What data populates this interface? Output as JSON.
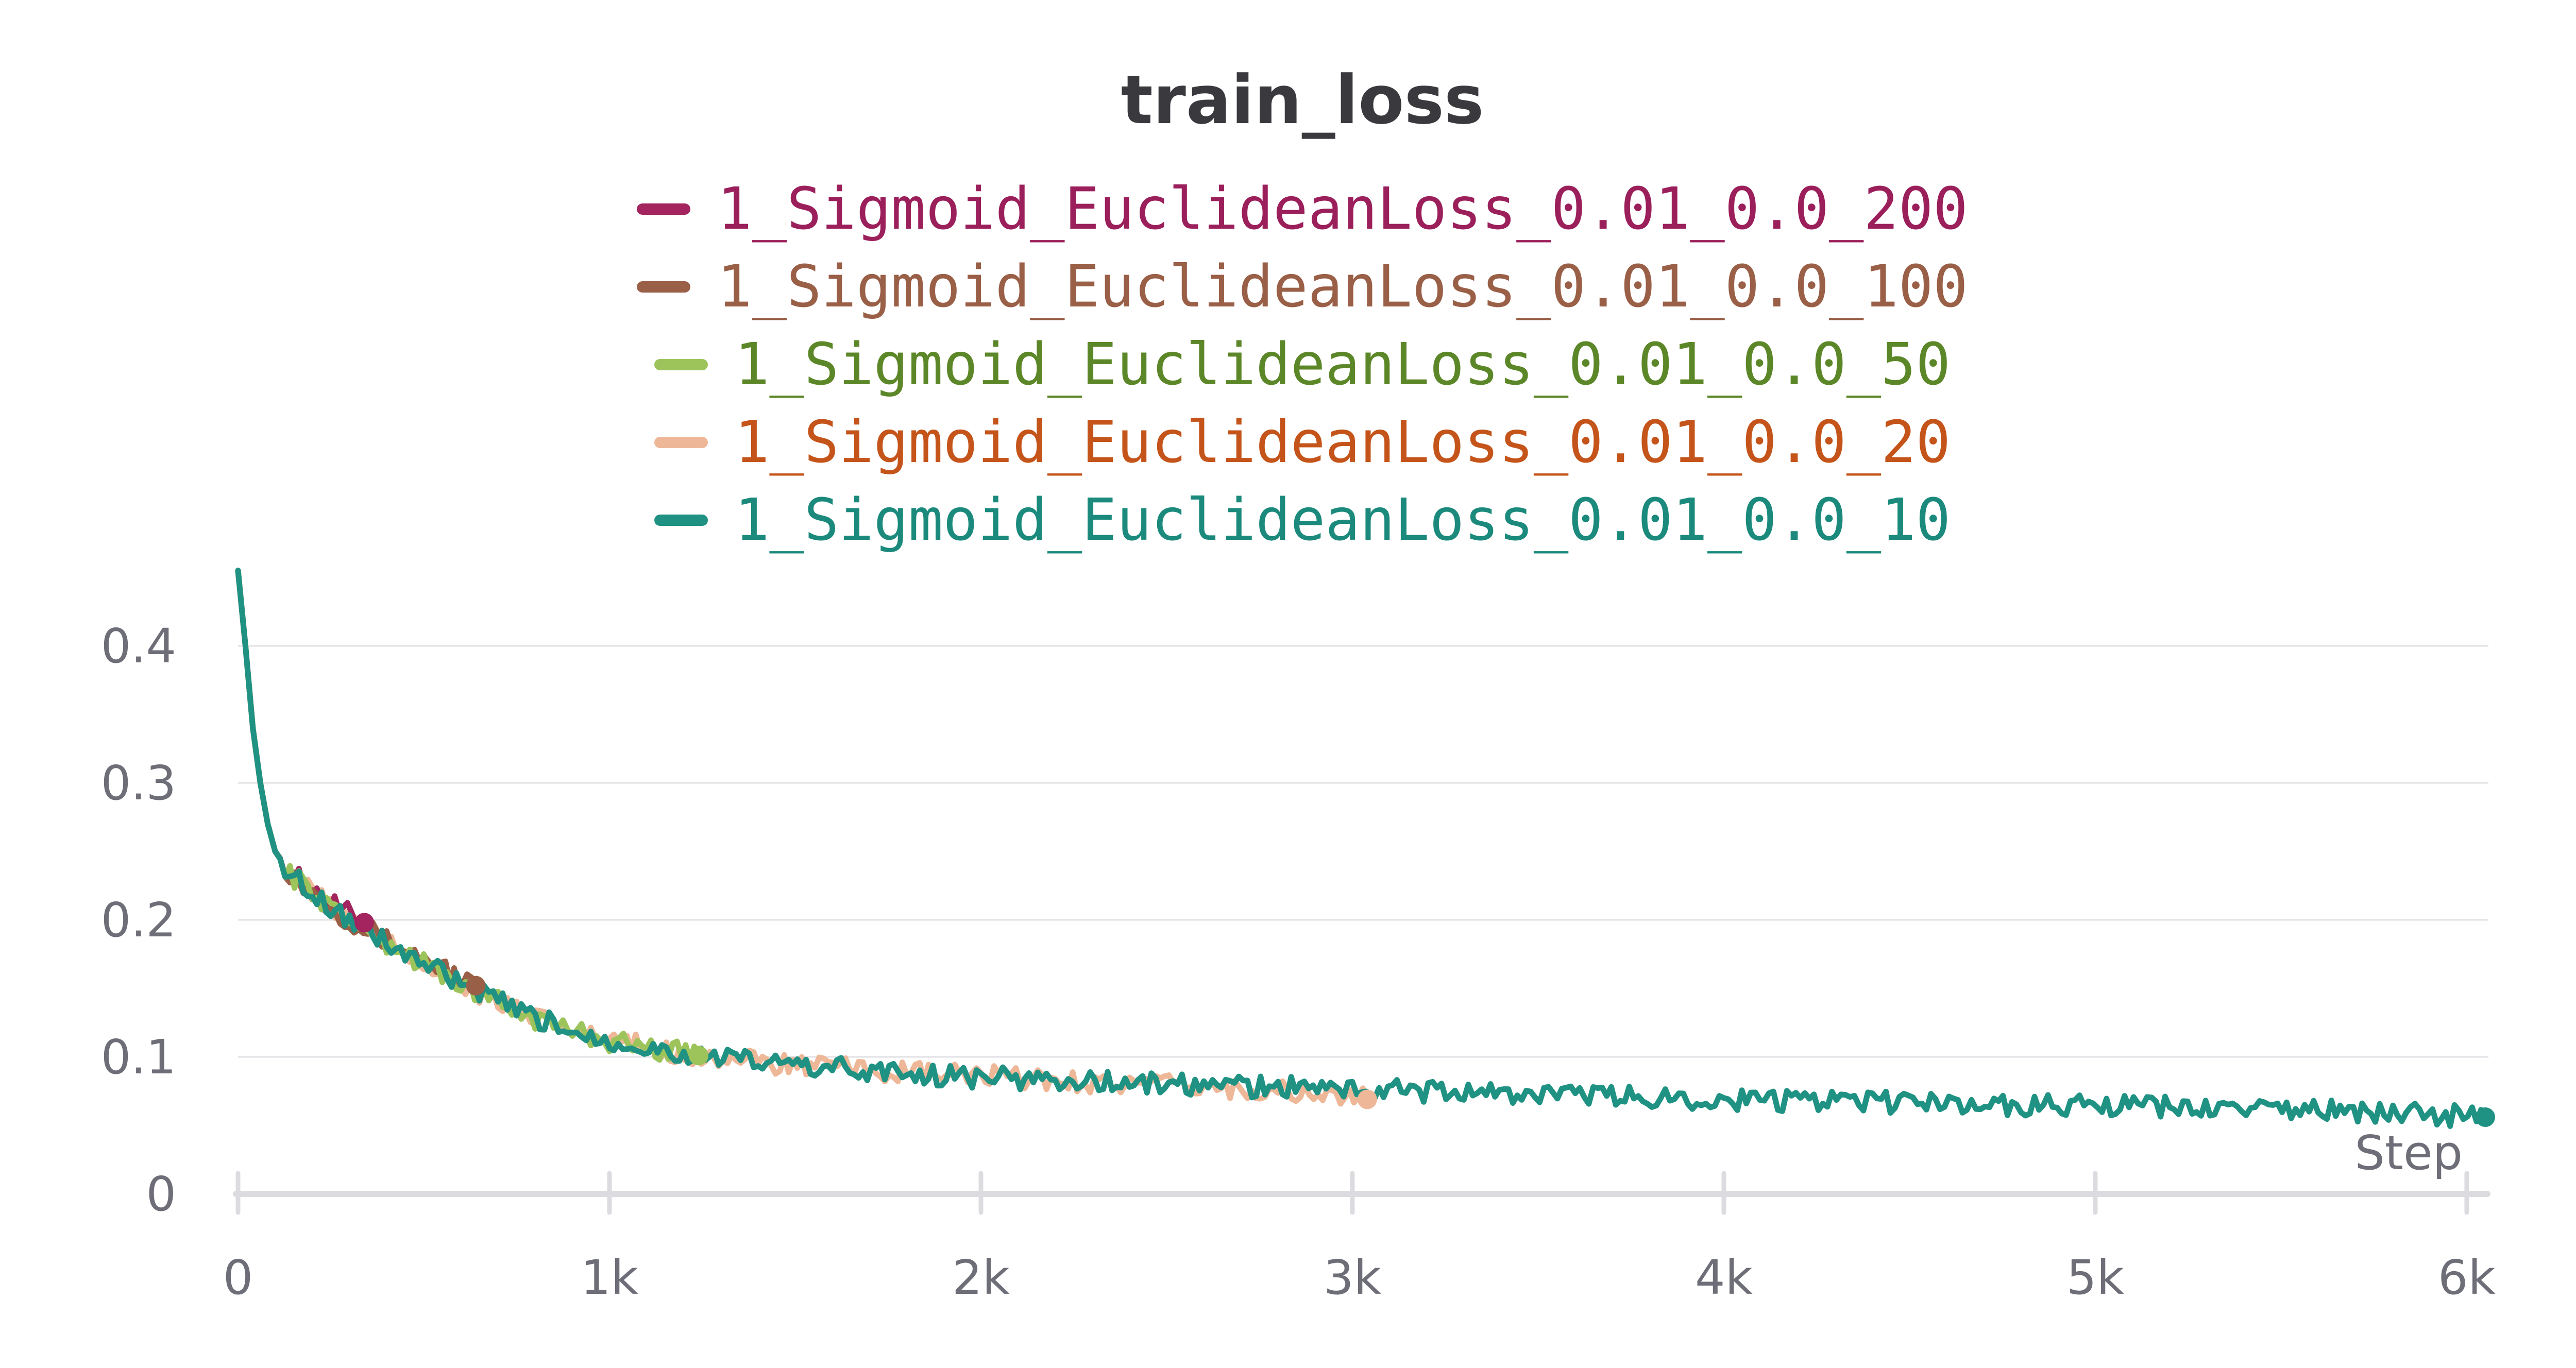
{
  "chart_data": {
    "type": "line",
    "title": "train_loss",
    "xlabel": "Step",
    "ylabel": "",
    "xlim": [
      0,
      6050
    ],
    "ylim": [
      0,
      0.45
    ],
    "x_ticks": [
      {
        "value": 0,
        "label": "0"
      },
      {
        "value": 1000,
        "label": "1k"
      },
      {
        "value": 2000,
        "label": "2k"
      },
      {
        "value": 3000,
        "label": "3k"
      },
      {
        "value": 4000,
        "label": "4k"
      },
      {
        "value": 5000,
        "label": "5k"
      },
      {
        "value": 6000,
        "label": "6k"
      }
    ],
    "y_ticks": [
      {
        "value": 0,
        "label": "0"
      },
      {
        "value": 0.1,
        "label": "0.1"
      },
      {
        "value": 0.2,
        "label": "0.2"
      },
      {
        "value": 0.3,
        "label": "0.3"
      },
      {
        "value": 0.4,
        "label": "0.4"
      }
    ],
    "grid": true,
    "legend_position": "top-center",
    "series": [
      {
        "name": "1_Sigmoid_EuclideanLoss_0.01_0.0_200",
        "color": "#a3245f",
        "text_color": "#9b1f5b",
        "x": [
          0,
          20,
          40,
          60,
          80,
          100,
          140,
          200,
          260,
          340
        ],
        "y": [
          0.455,
          0.4,
          0.34,
          0.3,
          0.27,
          0.25,
          0.235,
          0.222,
          0.21,
          0.198
        ]
      },
      {
        "name": "1_Sigmoid_EuclideanLoss_0.01_0.0_100",
        "color": "#9a5f47",
        "text_color": "#9a5f47",
        "x": [
          0,
          20,
          40,
          60,
          80,
          100,
          140,
          200,
          300,
          400,
          500,
          640
        ],
        "y": [
          0.455,
          0.4,
          0.34,
          0.3,
          0.27,
          0.25,
          0.234,
          0.22,
          0.2,
          0.185,
          0.172,
          0.152
        ]
      },
      {
        "name": "1_Sigmoid_EuclideanLoss_0.01_0.0_50",
        "color": "#9cc45a",
        "text_color": "#5c8728",
        "x": [
          0,
          20,
          40,
          60,
          80,
          100,
          140,
          200,
          300,
          400,
          500,
          600,
          700,
          800,
          900,
          1000,
          1100,
          1240
        ],
        "y": [
          0.455,
          0.4,
          0.34,
          0.3,
          0.27,
          0.25,
          0.234,
          0.22,
          0.2,
          0.183,
          0.168,
          0.153,
          0.14,
          0.128,
          0.119,
          0.112,
          0.107,
          0.101
        ]
      },
      {
        "name": "1_Sigmoid_EuclideanLoss_0.01_0.0_20",
        "color": "#eeb898",
        "text_color": "#c4541a",
        "x": [
          0,
          20,
          40,
          60,
          80,
          100,
          140,
          200,
          300,
          400,
          500,
          600,
          700,
          800,
          900,
          1000,
          1200,
          1400,
          1600,
          1800,
          2000,
          2200,
          2400,
          2600,
          2800,
          3040
        ],
        "y": [
          0.455,
          0.4,
          0.34,
          0.3,
          0.27,
          0.25,
          0.234,
          0.22,
          0.2,
          0.183,
          0.168,
          0.153,
          0.14,
          0.128,
          0.119,
          0.112,
          0.102,
          0.096,
          0.092,
          0.088,
          0.086,
          0.083,
          0.08,
          0.078,
          0.075,
          0.069
        ]
      },
      {
        "name": "1_Sigmoid_EuclideanLoss_0.01_0.0_10",
        "color": "#1f9283",
        "text_color": "#1b8a7c",
        "x": [
          0,
          20,
          40,
          60,
          80,
          100,
          140,
          200,
          300,
          400,
          500,
          600,
          700,
          800,
          900,
          1000,
          1200,
          1400,
          1600,
          1800,
          2000,
          2200,
          2400,
          2600,
          2800,
          3000,
          3300,
          3600,
          4000,
          4400,
          4800,
          5200,
          5600,
          6050
        ],
        "y": [
          0.455,
          0.4,
          0.34,
          0.3,
          0.27,
          0.25,
          0.234,
          0.22,
          0.2,
          0.183,
          0.168,
          0.153,
          0.14,
          0.128,
          0.119,
          0.112,
          0.102,
          0.096,
          0.092,
          0.088,
          0.085,
          0.083,
          0.081,
          0.079,
          0.078,
          0.077,
          0.074,
          0.072,
          0.069,
          0.067,
          0.065,
          0.063,
          0.061,
          0.056
        ]
      }
    ]
  }
}
